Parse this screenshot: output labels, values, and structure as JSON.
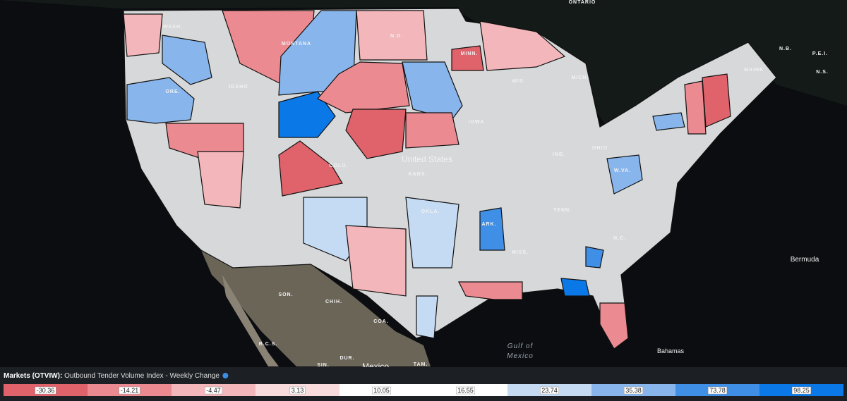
{
  "map": {
    "labels": [
      "ONTARIO",
      "WASH.",
      "MONTANA",
      "N.D.",
      "MINN.",
      "IDAHO",
      "ORE.",
      "WIS.",
      "MICH.",
      "IOWA",
      "United States",
      "KANS.",
      "COLO.",
      "IND.",
      "OHIO",
      "W.VA.",
      "OKLA.",
      "ARK.",
      "TENN.",
      "MISS.",
      "N.C.",
      "MAINE",
      "N.B.",
      "P.E.I.",
      "N.S.",
      "Bermuda",
      "SON.",
      "CHIH.",
      "COA.",
      "B.C.S.",
      "DUR.",
      "SIN.",
      "TAM.",
      "Mexico",
      "Gulf of",
      "Mexico",
      "Bahamas"
    ]
  },
  "legend": {
    "title": "Markets (OTVIW):",
    "subtitle": "Outbound Tender Volume Index - Weekly Change",
    "values": [
      -30.36,
      -14.21,
      -4.47,
      3.13,
      10.05,
      16.55,
      23.74,
      35.38,
      73.78,
      98.25
    ],
    "colors": [
      "#e0626b",
      "#eb8b91",
      "#f3b6ba",
      "#f9dadd",
      "#ffffff",
      "#ffffff",
      "#c5dbf4",
      "#88b6ec",
      "#3f8fe6",
      "#0b78e8"
    ]
  }
}
